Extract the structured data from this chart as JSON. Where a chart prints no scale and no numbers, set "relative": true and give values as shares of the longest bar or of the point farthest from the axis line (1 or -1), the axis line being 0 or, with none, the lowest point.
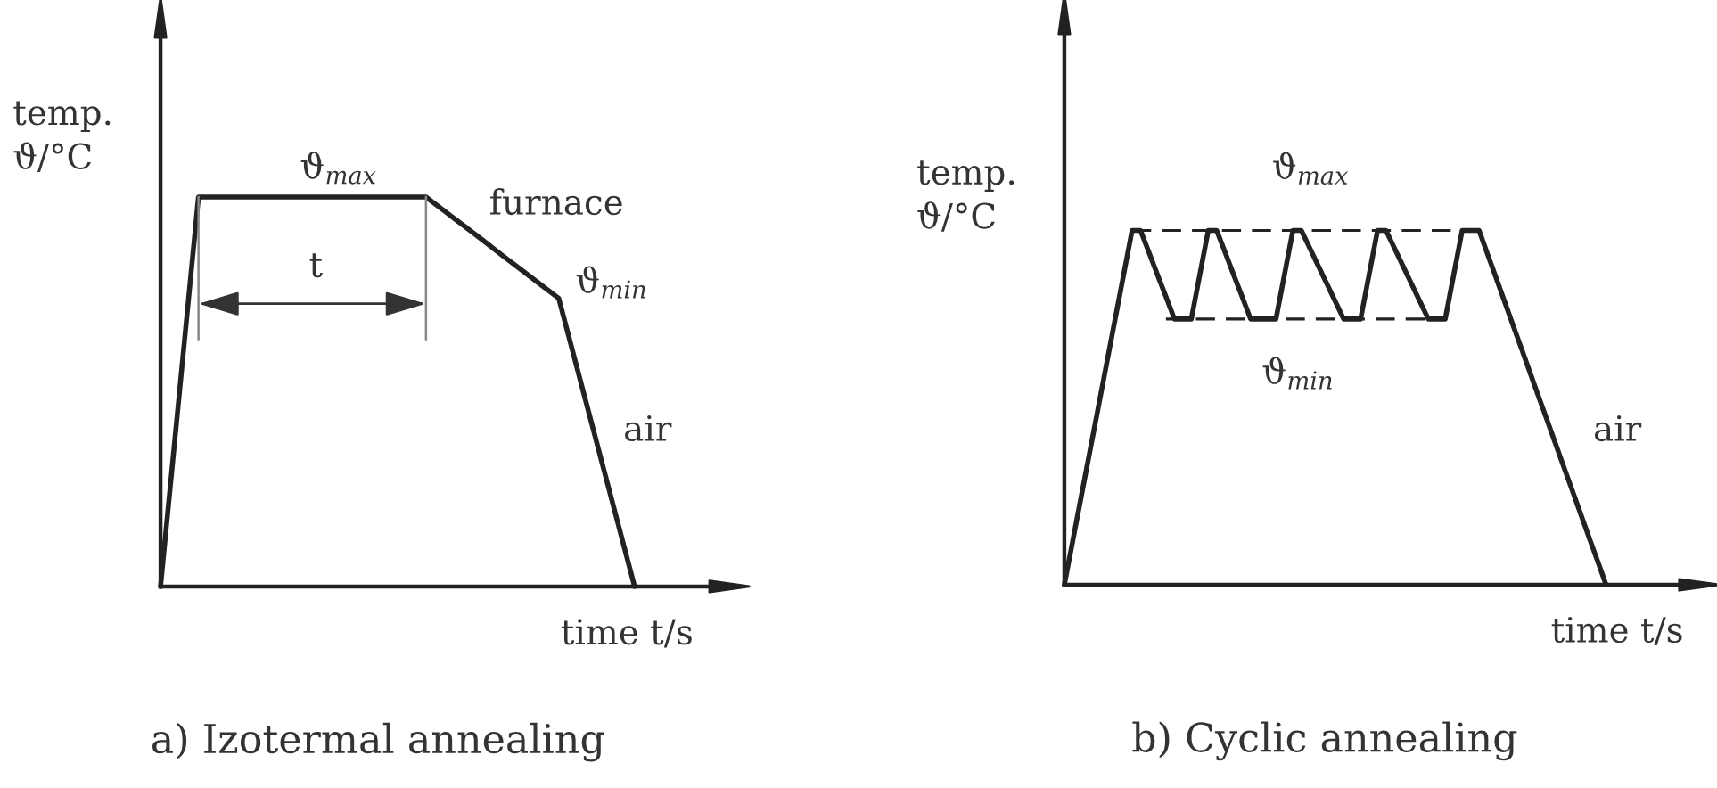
{
  "chart_data": [
    {
      "type": "line",
      "title": "a) Izotermal annealing",
      "xlabel": "time t/s",
      "ylabel": "temp.\nϑ/°C",
      "relative": true,
      "annotations": [
        "ϑ$_{max}$",
        "furnace",
        "t",
        "ϑ$_{min}$",
        "air"
      ],
      "categories": [
        null,
        null,
        null,
        null,
        null,
        null,
        null,
        null,
        null,
        null,
        null,
        null,
        null,
        null,
        null,
        null,
        null,
        null,
        null,
        null,
        null,
        null,
        null,
        null,
        null,
        null,
        null,
        null,
        null,
        null,
        null
      ],
      "series": [
        {
          "color": "#222222",
          "values": [
            0,
            0.5,
            1,
            1,
            1,
            1,
            1,
            1,
            1,
            1,
            1,
            1,
            1,
            1,
            1,
            0.963,
            0.926,
            0.889,
            0.851,
            0.814,
            0.777,
            0.74,
            0.555,
            0.37,
            0.185,
            0,
            null,
            null,
            null,
            null,
            null
          ]
        }
      ]
    },
    {
      "type": "line",
      "title": "b) Cyclic annealing",
      "xlabel": "time t/s",
      "ylabel": "temp.\nϑ/°C",
      "relative": true,
      "annotations": [
        "ϑ$_{max}$",
        "ϑ$_{min}$",
        "air"
      ],
      "categories": [
        null,
        null,
        null,
        null,
        null,
        null,
        null,
        null,
        null,
        null,
        null,
        null,
        null,
        null,
        null,
        null,
        null,
        null,
        null,
        null,
        null,
        null,
        null,
        null,
        null,
        null,
        null,
        null,
        null,
        null,
        null,
        null,
        null,
        null,
        null,
        null,
        null,
        null,
        null,
        null,
        null,
        null,
        null,
        null,
        null,
        null,
        null,
        null,
        null,
        null,
        null,
        null,
        null,
        null,
        null,
        null,
        null,
        null,
        null,
        null,
        null,
        null,
        null,
        null,
        null,
        null,
        null,
        null,
        null,
        null,
        null,
        null,
        null,
        null,
        null,
        null
      ],
      "series": [
        {
          "color": "#222222",
          "values": [
            0,
            0.125,
            0.25,
            0.375,
            0.5,
            0.625,
            0.75,
            0.875,
            1,
            1,
            0.938,
            0.875,
            0.813,
            0.75,
            0.75,
            0.75,
            0.875,
            1,
            1,
            0.938,
            0.875,
            0.813,
            0.75,
            0.75,
            0.75,
            0.75,
            0.875,
            1,
            1,
            0.95,
            0.9,
            0.85,
            0.8,
            0.75,
            0.75,
            0.75,
            0.875,
            1,
            1,
            0.95,
            0.9,
            0.85,
            0.8,
            0.75,
            0.75,
            0.75,
            0.875,
            1,
            1,
            1,
            0.933,
            0.867,
            0.8,
            0.733,
            0.667,
            0.6,
            0.533,
            0.467,
            0.4,
            0.333,
            0.267,
            0.2,
            0.133,
            0.067,
            0,
            null,
            null,
            null,
            null,
            null,
            null,
            null,
            null,
            null,
            null,
            null
          ]
        },
        {
          "color": "#222222",
          "line_style": "dashed",
          "values": [
            null,
            null,
            null,
            null,
            null,
            null,
            null,
            null,
            1,
            1,
            1,
            1,
            1,
            1,
            1,
            1,
            1,
            1,
            1,
            1,
            1,
            1,
            1,
            1,
            1,
            1,
            1,
            1,
            1,
            1,
            1,
            1,
            1,
            1,
            1,
            1,
            1,
            1,
            1,
            1,
            1,
            1,
            1,
            1,
            1,
            1,
            1,
            1,
            1,
            1,
            null,
            null,
            null,
            null,
            null,
            null,
            null,
            null,
            null,
            null,
            null,
            null,
            null,
            null,
            null,
            null,
            null,
            null,
            null,
            null,
            null,
            null,
            null,
            null,
            null,
            null
          ]
        },
        {
          "color": "#222222",
          "line_style": "dashed",
          "values": [
            null,
            null,
            null,
            null,
            null,
            null,
            null,
            null,
            null,
            null,
            null,
            null,
            0.75,
            0.75,
            0.75,
            0.75,
            0.75,
            0.75,
            0.75,
            0.75,
            0.75,
            0.75,
            0.75,
            0.75,
            0.75,
            0.75,
            0.75,
            0.75,
            0.75,
            0.75,
            0.75,
            0.75,
            0.75,
            0.75,
            0.75,
            0.75,
            0.75,
            0.75,
            0.75,
            0.75,
            0.75,
            0.75,
            0.75,
            0.75,
            0.75,
            0.75,
            null,
            null,
            null,
            null,
            null,
            null,
            null,
            null,
            null,
            null,
            null,
            null,
            null,
            null,
            null,
            null,
            null,
            null,
            null,
            null,
            null,
            null,
            null,
            null,
            null,
            null,
            null,
            null,
            null,
            null
          ]
        }
      ]
    }
  ]
}
